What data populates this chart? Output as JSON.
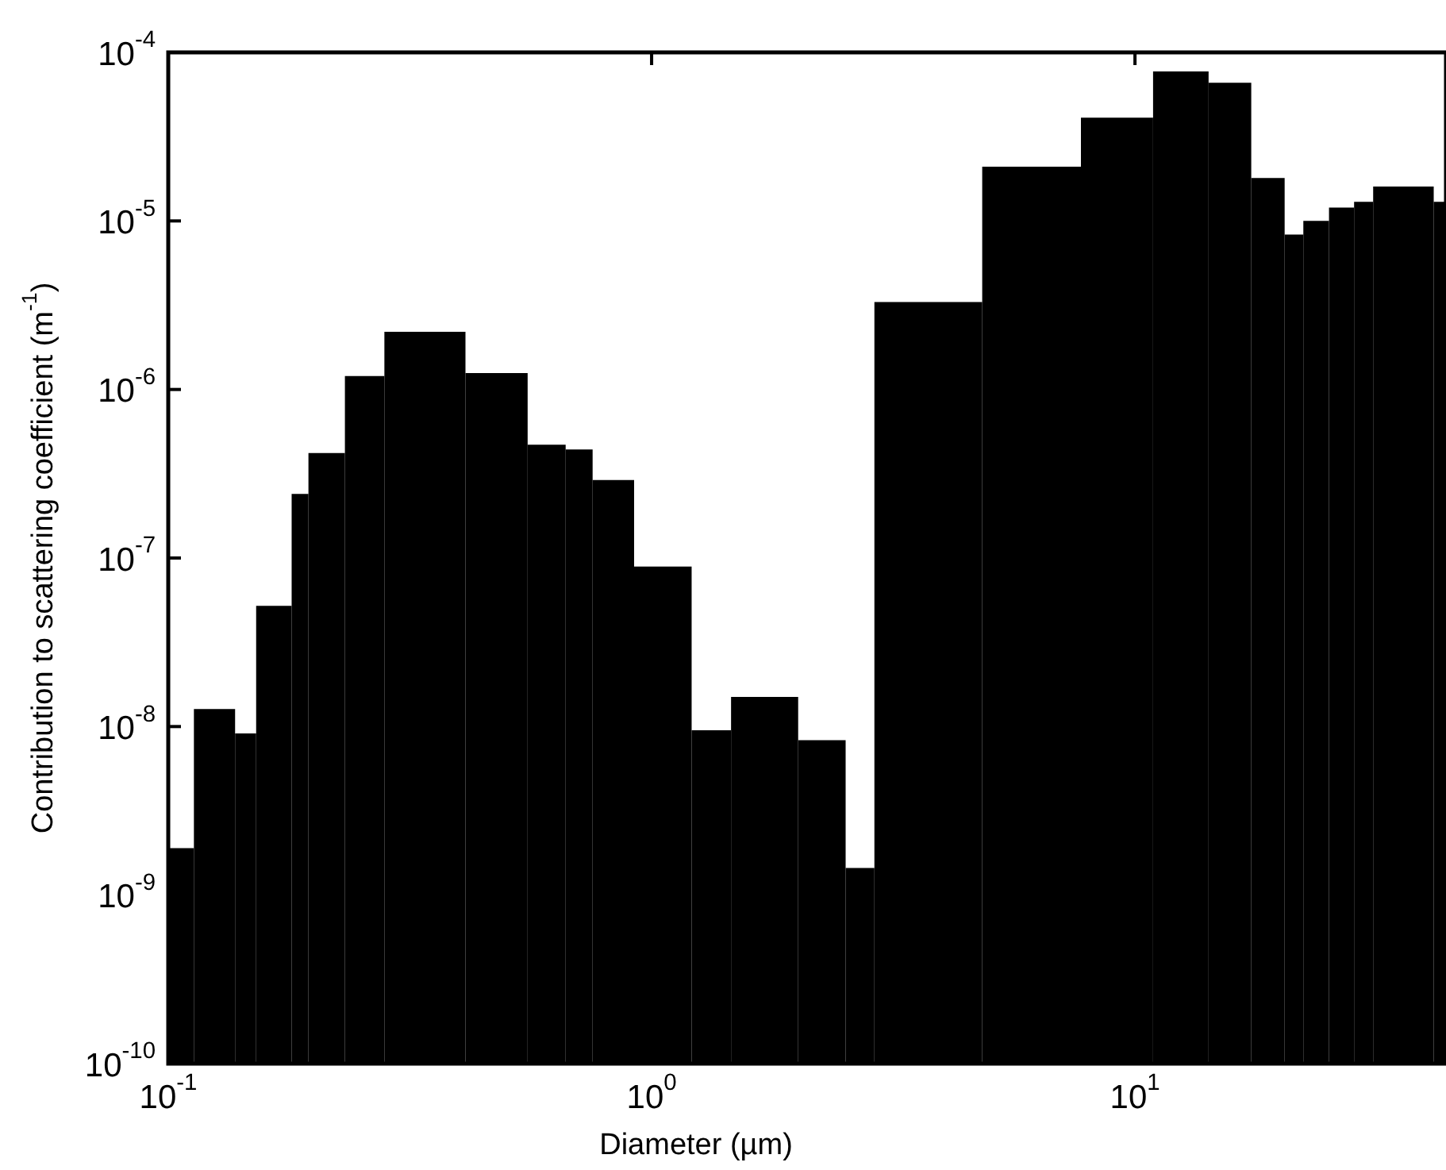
{
  "chart_data": {
    "type": "histogram",
    "xlabel": "Diameter (µm)",
    "ylabel": "Contribution to scattering coefficient (m$^{-1}$)",
    "color": "#000000",
    "log": "xy",
    "bins": [
      0.1,
      0.113,
      0.1375,
      0.152,
      0.18,
      0.195,
      0.232,
      0.28,
      0.412,
      0.554,
      0.664,
      0.755,
      0.92,
      1.21,
      1.46,
      2.01,
      2.52,
      2.89,
      4.83,
      7.73,
      10.9,
      14.2,
      17.4,
      20.4,
      22.3,
      25.2,
      28.4,
      31.1,
      41.5,
      44
    ],
    "values": [
      1.9e-09,
      1.27e-08,
      9.1e-09,
      5.2e-08,
      2.4e-07,
      4.2e-07,
      1.2e-06,
      2.2e-06,
      1.25e-06,
      4.7e-07,
      4.4e-07,
      2.9e-07,
      8.9e-08,
      9.5e-09,
      1.5e-08,
      8.3e-09,
      1.45e-09,
      3.3e-06,
      2.1e-05,
      4.1e-05,
      7.7e-05,
      6.6e-05,
      1.8e-05,
      8.3e-06,
      1e-05,
      1.2e-05,
      1.3e-05,
      1.6e-05,
      1.3e-05
    ],
    "xlim": [
      0.1,
      44
    ],
    "ylim": [
      1e-10,
      0.0001
    ],
    "xticks": [
      {
        "value": 0.1,
        "label": "10$^{-1}$"
      },
      {
        "value": 1,
        "label": "10$^{0}$"
      },
      {
        "value": 10,
        "label": "10$^{1}$"
      }
    ],
    "yticks": [
      {
        "value": 1e-10,
        "label": "10$^{-10}$"
      },
      {
        "value": 1e-09,
        "label": "10$^{-9}$"
      },
      {
        "value": 1e-08,
        "label": "10$^{-8}$"
      },
      {
        "value": 1e-07,
        "label": "10$^{-7}$"
      },
      {
        "value": 1e-06,
        "label": "10$^{-6}$"
      },
      {
        "value": 1e-05,
        "label": "10$^{-5}$"
      },
      {
        "value": 0.0001,
        "label": "10$^{-4}$"
      }
    ]
  }
}
